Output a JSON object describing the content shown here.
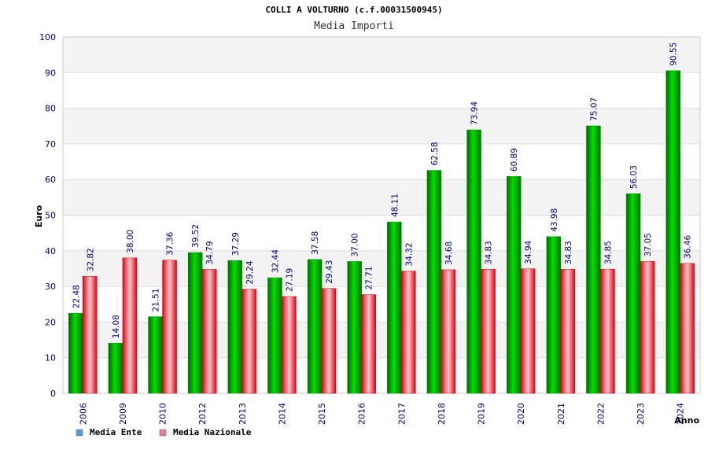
{
  "chart_data": {
    "type": "bar",
    "title": "COLLI A VOLTURNO (c.f.00031500945)",
    "subtitle": "Media Importi",
    "xlabel": "Anno",
    "ylabel": "Euro",
    "ylim": [
      0,
      100
    ],
    "yticks": [
      "0",
      "10",
      "20",
      "30",
      "40",
      "50",
      "60",
      "70",
      "80",
      "90",
      "100"
    ],
    "categories": [
      "2006",
      "2009",
      "2010",
      "2012",
      "2013",
      "2014",
      "2015",
      "2016",
      "2017",
      "2018",
      "2019",
      "2020",
      "2021",
      "2022",
      "2023",
      "2024"
    ],
    "series": [
      {
        "name": "Media Ente",
        "color": "#00b400",
        "values": [
          22.48,
          14.08,
          21.51,
          39.52,
          37.29,
          32.44,
          37.58,
          37.0,
          48.11,
          62.58,
          73.94,
          60.89,
          43.98,
          75.07,
          56.03,
          90.55
        ],
        "labels": [
          "22.48",
          "14.08",
          "21.51",
          "39.52",
          "37.29",
          "32.44",
          "37.58",
          "37.00",
          "48.11",
          "62.58",
          "73.94",
          "60.89",
          "43.98",
          "75.07",
          "56.03",
          "90.55"
        ]
      },
      {
        "name": "Media Nazionale",
        "color": "#e8202a",
        "values": [
          32.82,
          38.0,
          37.36,
          34.79,
          29.24,
          27.19,
          29.43,
          27.71,
          34.32,
          34.68,
          34.83,
          34.94,
          34.83,
          34.85,
          37.05,
          36.46
        ],
        "labels": [
          "32.82",
          "38.00",
          "37.36",
          "34.79",
          "29.24",
          "27.19",
          "29.43",
          "27.71",
          "34.32",
          "34.68",
          "34.83",
          "34.94",
          "34.83",
          "34.85",
          "37.05",
          "36.46"
        ]
      }
    ],
    "legend": {
      "placement": "bottom-left",
      "items": [
        {
          "label": "Media Ente",
          "color": "#5b9bd5"
        },
        {
          "label": "Media Nazionale",
          "color": "#e87aa0"
        }
      ]
    },
    "grid": true
  }
}
